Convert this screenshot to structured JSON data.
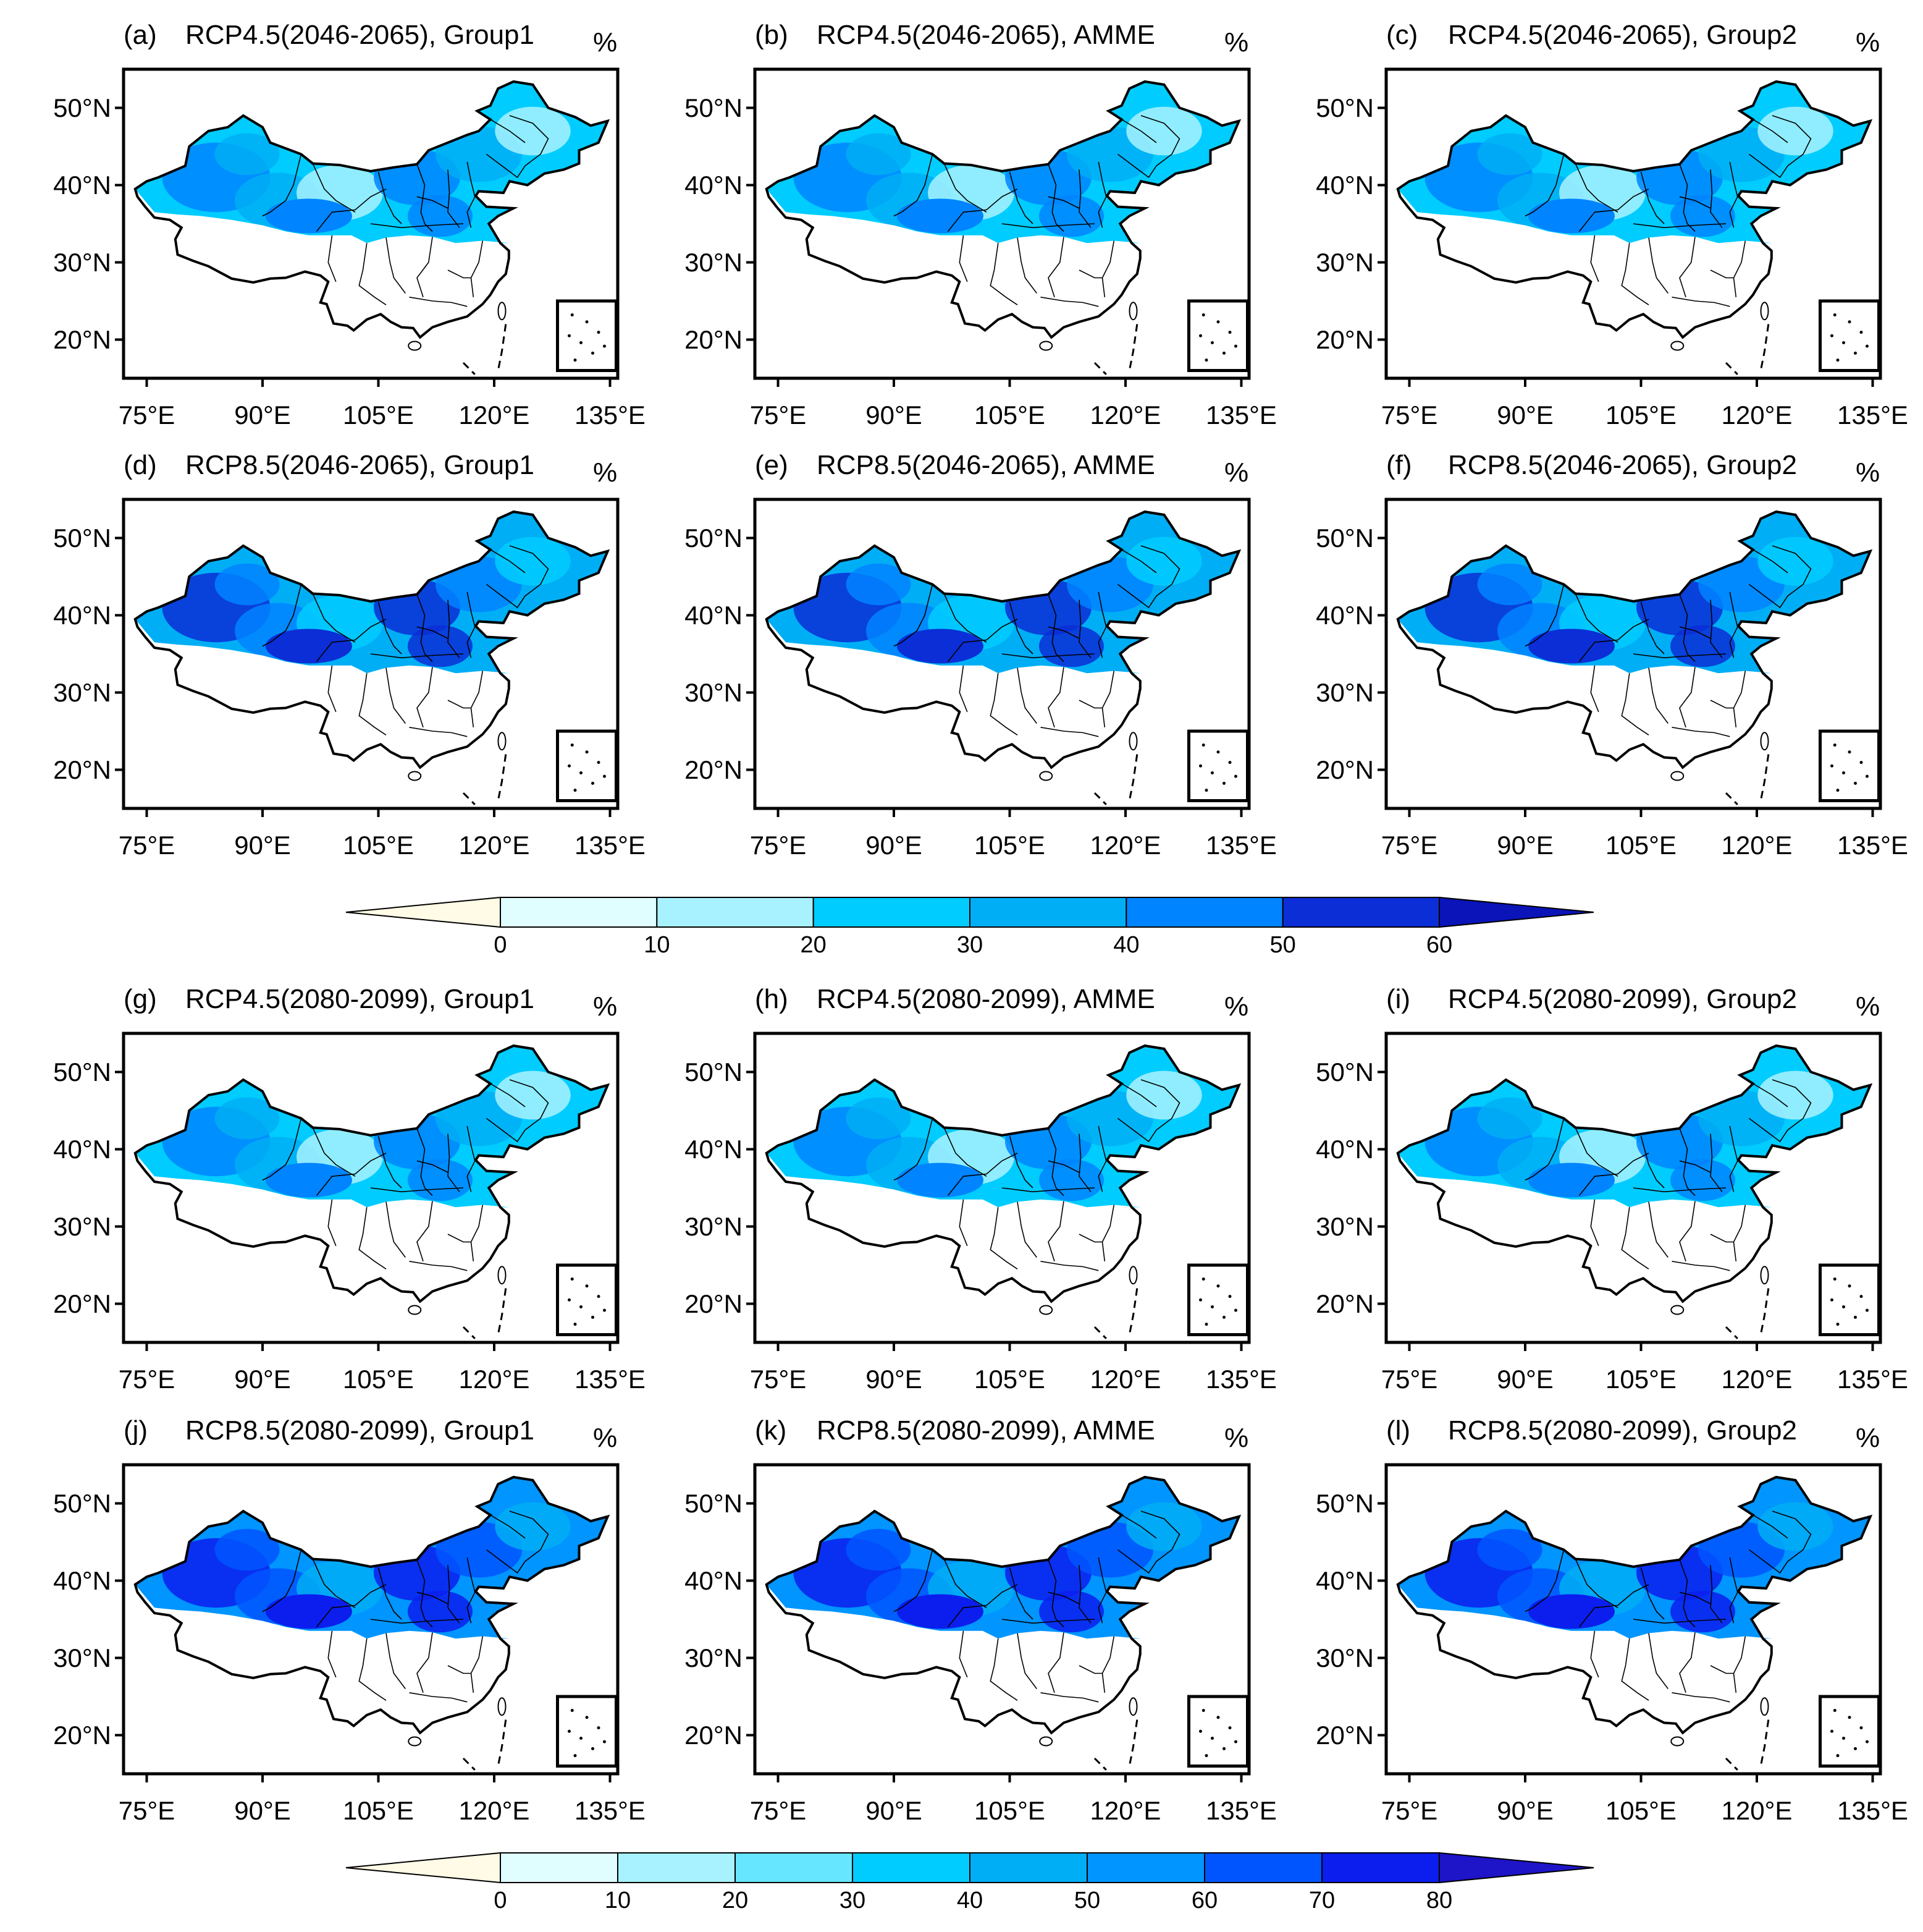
{
  "unit": "%",
  "lat_ticks": [
    "50°N",
    "40°N",
    "30°N",
    "20°N"
  ],
  "lon_ticks": [
    "75°E",
    "90°E",
    "105°E",
    "120°E",
    "135°E"
  ],
  "colors": {
    "below": "#fffbe6",
    "bins_top": [
      "#e0fdff",
      "#a8f2ff",
      "#00ccff",
      "#00aef5",
      "#0084ff",
      "#0b2ed6"
    ],
    "bins_bottom": [
      "#e0fdff",
      "#a8f2ff",
      "#66e6ff",
      "#00ccff",
      "#00aef5",
      "#0095ff",
      "#0055ff",
      "#0b1eee"
    ],
    "over_top": "#0b14b8",
    "over_bottom": "#1e14c8"
  },
  "colorbar_top": {
    "ticks": [
      "0",
      "10",
      "20",
      "30",
      "40",
      "50",
      "60"
    ]
  },
  "colorbar_bottom": {
    "ticks": [
      "0",
      "10",
      "20",
      "30",
      "40",
      "50",
      "60",
      "70",
      "80"
    ]
  },
  "panels": [
    {
      "code": "(a)",
      "title": "RCP4.5(2046-2065), Group1",
      "level": 2
    },
    {
      "code": "(b)",
      "title": "RCP4.5(2046-2065), AMME",
      "level": 2
    },
    {
      "code": "(c)",
      "title": "RCP4.5(2046-2065), Group2",
      "level": 2
    },
    {
      "code": "(d)",
      "title": "RCP8.5(2046-2065), Group1",
      "level": 3
    },
    {
      "code": "(e)",
      "title": "RCP8.5(2046-2065), AMME",
      "level": 3
    },
    {
      "code": "(f)",
      "title": "RCP8.5(2046-2065), Group2",
      "level": 3
    },
    {
      "code": "(g)",
      "title": "RCP4.5(2080-2099), Group1",
      "level": 2
    },
    {
      "code": "(h)",
      "title": "RCP4.5(2080-2099), AMME",
      "level": 2
    },
    {
      "code": "(i)",
      "title": "RCP4.5(2080-2099), Group2",
      "level": 2
    },
    {
      "code": "(j)",
      "title": "RCP8.5(2080-2099), Group1",
      "level": 4
    },
    {
      "code": "(k)",
      "title": "RCP8.5(2080-2099), AMME",
      "level": 4
    },
    {
      "code": "(l)",
      "title": "RCP8.5(2080-2099), Group2",
      "level": 4
    }
  ]
}
